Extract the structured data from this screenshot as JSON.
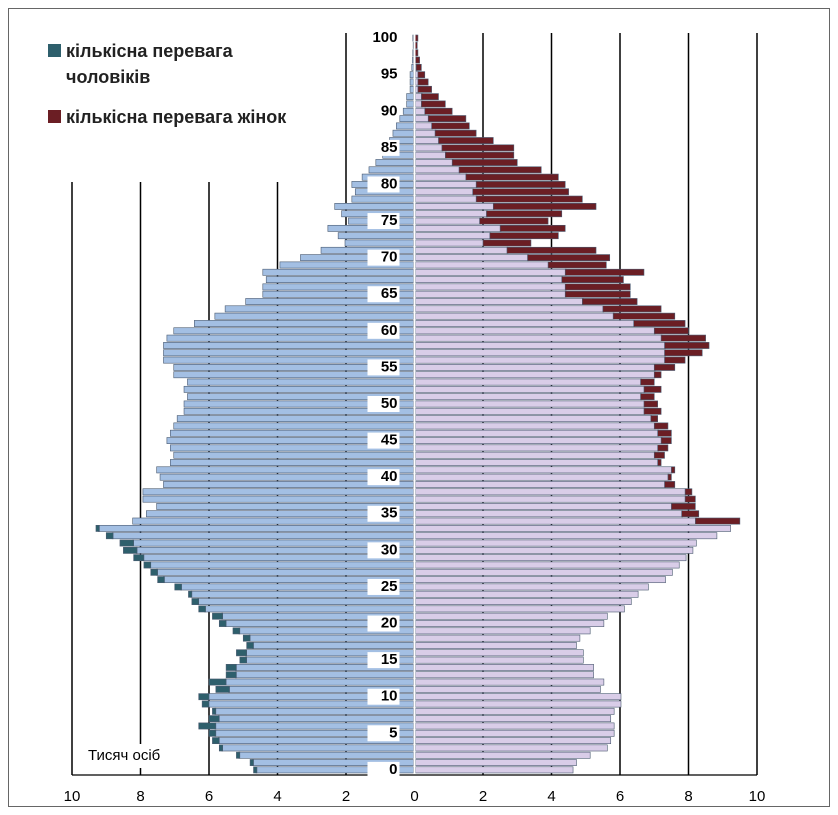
{
  "chart_data": {
    "type": "pyramid",
    "unit_label": "Тисяч осіб",
    "categories": [
      "0",
      null,
      null,
      null,
      null,
      "5",
      null,
      null,
      null,
      null,
      "10",
      null,
      null,
      null,
      null,
      "15",
      null,
      null,
      null,
      null,
      "20",
      null,
      null,
      null,
      null,
      "25",
      null,
      null,
      null,
      null,
      "30",
      null,
      null,
      null,
      null,
      "35",
      null,
      null,
      null,
      null,
      "40",
      null,
      null,
      null,
      null,
      "45",
      null,
      null,
      null,
      null,
      "50",
      null,
      null,
      null,
      null,
      "55",
      null,
      null,
      null,
      null,
      "60",
      null,
      null,
      null,
      null,
      "65",
      null,
      null,
      null,
      null,
      "70",
      null,
      null,
      null,
      null,
      "75",
      null,
      null,
      null,
      null,
      "80",
      null,
      null,
      null,
      null,
      "85",
      null,
      null,
      null,
      null,
      "90",
      null,
      null,
      null,
      null,
      "95",
      null,
      null,
      null,
      null,
      "100"
    ],
    "series": [
      {
        "side": "left",
        "color": "#a3bfe3",
        "values": [
          4.6,
          4.7,
          5.1,
          5.6,
          5.7,
          5.8,
          5.8,
          5.7,
          5.8,
          6.0,
          6.0,
          5.4,
          5.5,
          5.2,
          5.2,
          4.9,
          4.9,
          4.7,
          4.8,
          5.1,
          5.5,
          5.6,
          6.1,
          6.3,
          6.5,
          6.8,
          7.3,
          7.5,
          7.7,
          7.9,
          8.1,
          8.2,
          8.8,
          9.2,
          8.2,
          7.8,
          7.5,
          7.9,
          7.9,
          7.3,
          7.4,
          7.5,
          7.1,
          7.0,
          7.1,
          7.2,
          7.1,
          7.0,
          6.9,
          6.7,
          6.7,
          6.6,
          6.7,
          6.6,
          7.0,
          7.0,
          7.3,
          7.3,
          7.3,
          7.2,
          7.0,
          6.4,
          5.8,
          5.5,
          4.9,
          4.4,
          4.4,
          4.3,
          4.4,
          3.9,
          3.3,
          2.7,
          2.0,
          2.2,
          2.5,
          1.9,
          2.1,
          2.3,
          1.8,
          1.7,
          1.8,
          1.5,
          1.3,
          1.1,
          0.9,
          0.8,
          0.7,
          0.6,
          0.5,
          0.4,
          0.3,
          0.2,
          0.2,
          0.1,
          0.1,
          0.1,
          0.05,
          0.03,
          0.02,
          0.01,
          0.02
        ]
      },
      {
        "name": "кількісна перевага чоловіків",
        "side": "left",
        "color": "#2e5f6c",
        "values": [
          0.1,
          0.1,
          0.1,
          0.1,
          0.2,
          0.2,
          0.5,
          0.3,
          0.1,
          0.2,
          0.3,
          0.4,
          0.5,
          0.3,
          0.3,
          0.2,
          0.3,
          0.2,
          0.2,
          0.2,
          0.2,
          0.3,
          0.2,
          0.2,
          0.1,
          0.2,
          0.2,
          0.2,
          0.2,
          0.3,
          0.4,
          0.4,
          0.2,
          0.1,
          null,
          null,
          null,
          null,
          null,
          null,
          null,
          null,
          null,
          null,
          null,
          null,
          null,
          null,
          null,
          null,
          null,
          null,
          null,
          null,
          null,
          null,
          null,
          null,
          null,
          null,
          null,
          null,
          null,
          null,
          null,
          null,
          null,
          null,
          null,
          null,
          null,
          null,
          null,
          null,
          null,
          null,
          null,
          null,
          null,
          null,
          null,
          null,
          null,
          null,
          null,
          null,
          null,
          null,
          null,
          null,
          null,
          null,
          null,
          null,
          null,
          null,
          null,
          null,
          null,
          null,
          null
        ]
      },
      {
        "side": "right",
        "color": "#d9cde8",
        "values": [
          4.6,
          4.7,
          5.1,
          5.6,
          5.7,
          5.8,
          5.8,
          5.7,
          5.8,
          6.0,
          6.0,
          5.4,
          5.5,
          5.2,
          5.2,
          4.9,
          4.9,
          4.7,
          4.8,
          5.1,
          5.5,
          5.6,
          6.1,
          6.3,
          6.5,
          6.8,
          7.3,
          7.5,
          7.7,
          7.9,
          8.1,
          8.2,
          8.8,
          9.2,
          8.2,
          7.8,
          7.5,
          7.9,
          7.9,
          7.3,
          7.4,
          7.5,
          7.1,
          7.0,
          7.1,
          7.2,
          7.1,
          7.0,
          6.9,
          6.7,
          6.7,
          6.6,
          6.7,
          6.6,
          7.0,
          7.0,
          7.3,
          7.3,
          7.3,
          7.2,
          7.0,
          6.4,
          5.8,
          5.5,
          4.9,
          4.4,
          4.4,
          4.3,
          4.4,
          3.9,
          3.3,
          2.7,
          2.0,
          2.2,
          2.5,
          1.9,
          2.1,
          2.3,
          1.8,
          1.7,
          1.8,
          1.5,
          1.3,
          1.1,
          0.9,
          0.8,
          0.7,
          0.6,
          0.5,
          0.4,
          0.3,
          0.2,
          0.2,
          0.1,
          0.1,
          0.1,
          0.05,
          0.03,
          0.02,
          0.01,
          0.02
        ]
      },
      {
        "name": "кількісна перевага жінок",
        "side": "right",
        "color": "#6b1e24",
        "values": [
          null,
          null,
          null,
          null,
          null,
          null,
          null,
          null,
          null,
          null,
          null,
          null,
          null,
          null,
          null,
          null,
          null,
          null,
          null,
          null,
          null,
          null,
          null,
          null,
          null,
          null,
          null,
          null,
          null,
          null,
          null,
          null,
          null,
          null,
          1.3,
          0.5,
          0.7,
          0.3,
          0.2,
          0.3,
          0.1,
          0.1,
          0.1,
          0.3,
          0.3,
          0.3,
          0.4,
          0.4,
          0.2,
          0.5,
          0.4,
          0.4,
          0.5,
          0.4,
          0.2,
          0.6,
          0.6,
          1.1,
          1.3,
          1.3,
          1.0,
          1.5,
          1.8,
          1.7,
          1.6,
          1.9,
          1.9,
          1.8,
          2.3,
          1.7,
          2.4,
          2.6,
          1.4,
          2.0,
          1.9,
          2.0,
          2.2,
          3.0,
          3.1,
          2.8,
          2.6,
          2.7,
          2.4,
          1.9,
          2.0,
          2.1,
          1.6,
          1.2,
          1.1,
          1.1,
          0.8,
          0.7,
          0.5,
          0.4,
          0.3,
          0.2,
          0.15,
          0.12,
          0.08,
          0.07,
          0.08
        ]
      }
    ],
    "xlim": [
      -10,
      10
    ],
    "xticks": [
      {
        "value": -10,
        "label": "10"
      },
      {
        "value": -8,
        "label": "8"
      },
      {
        "value": -6,
        "label": "6"
      },
      {
        "value": -4,
        "label": "4"
      },
      {
        "value": -2,
        "label": "2"
      },
      0,
      2,
      4,
      6,
      8,
      10
    ],
    "ylim": [
      -0.7,
      100.7
    ],
    "grid": true,
    "legend": "top-left"
  }
}
